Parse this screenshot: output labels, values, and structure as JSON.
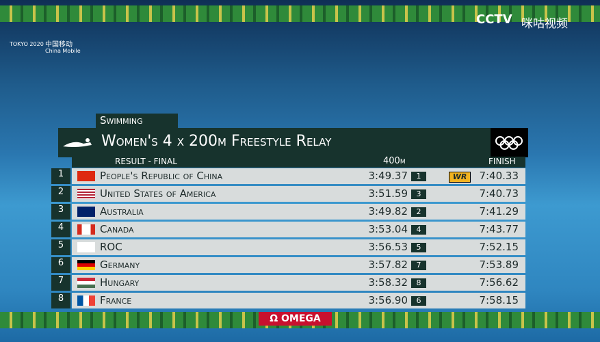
{
  "broadcast": {
    "games_logo": "TOKYO 2020",
    "sponsor_cn": "中国移动",
    "sponsor_en": "China Mobile",
    "channel": "CCTV",
    "platform": "咪咕视频"
  },
  "graphic": {
    "sport": "Swimming",
    "title": "Women's 4 x 200m Freestyle Relay",
    "subtitle": "RESULT - FINAL",
    "split_header": "400m",
    "finish_header": "FINISH",
    "sponsor": "Ω OMEGA"
  },
  "rows": [
    {
      "rank": "1",
      "country": "People's Republic of China",
      "split": "3:49.37",
      "split_rank": "1",
      "record": "WR",
      "finish": "7:40.33"
    },
    {
      "rank": "2",
      "country": "United States of America",
      "split": "3:51.59",
      "split_rank": "3",
      "record": null,
      "finish": "7:40.73"
    },
    {
      "rank": "3",
      "country": "Australia",
      "split": "3:49.82",
      "split_rank": "2",
      "record": null,
      "finish": "7:41.29"
    },
    {
      "rank": "4",
      "country": "Canada",
      "split": "3:53.04",
      "split_rank": "4",
      "record": null,
      "finish": "7:43.77"
    },
    {
      "rank": "5",
      "country": "ROC",
      "split": "3:56.53",
      "split_rank": "5",
      "record": null,
      "finish": "7:52.15"
    },
    {
      "rank": "6",
      "country": "Germany",
      "split": "3:57.82",
      "split_rank": "7",
      "record": null,
      "finish": "7:53.89"
    },
    {
      "rank": "7",
      "country": "Hungary",
      "split": "3:58.32",
      "split_rank": "8",
      "record": null,
      "finish": "7:56.62"
    },
    {
      "rank": "8",
      "country": "France",
      "split": "3:56.90",
      "split_rank": "6",
      "record": null,
      "finish": "7:58.15"
    }
  ]
}
